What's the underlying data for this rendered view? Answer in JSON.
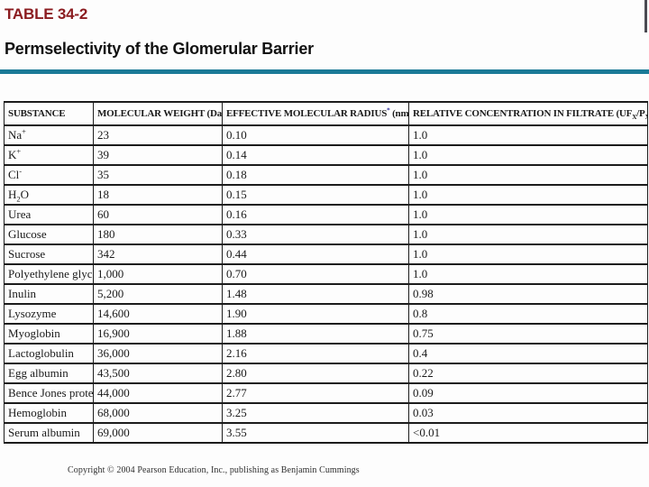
{
  "slide": {
    "table_label": "TABLE 34-2",
    "title": "Permselectivity of the Glomerular Barrier",
    "copyright": "Copyright © 2004 Pearson Education, Inc., publishing as Benjamin Cummings",
    "colors": {
      "label_red": "#8b1c20",
      "divider_teal": "#1b7a97",
      "asterisk_blue": "#2a2a9e"
    }
  },
  "table": {
    "headers": [
      {
        "name": "substance",
        "segments": [
          {
            "t": "SUBSTANCE"
          }
        ]
      },
      {
        "name": "molecular-weight",
        "segments": [
          {
            "t": "MOLECULAR WEIGHT (Da)"
          }
        ]
      },
      {
        "name": "effective-molecular-radius",
        "segments": [
          {
            "t": "EFFECTIVE MOLECULAR RADIUS"
          },
          {
            "t": "*",
            "s": "sup",
            "c": "#2a2a9e"
          },
          {
            "t": " (nm)"
          }
        ]
      },
      {
        "name": "relative-concentration",
        "segments": [
          {
            "t": "RELATIVE CONCENTRATION IN FILTRATE (UF"
          },
          {
            "t": "X",
            "s": "sub"
          },
          {
            "t": "/P"
          },
          {
            "t": "X",
            "s": "sub"
          },
          {
            "t": ")"
          }
        ]
      }
    ],
    "rows": [
      {
        "substance": [
          {
            "t": "Na"
          },
          {
            "t": "+",
            "s": "sup"
          }
        ],
        "mw": "23",
        "radius": "0.10",
        "filtrate": "1.0"
      },
      {
        "substance": [
          {
            "t": "K"
          },
          {
            "t": "+",
            "s": "sup"
          }
        ],
        "mw": "39",
        "radius": "0.14",
        "filtrate": "1.0"
      },
      {
        "substance": [
          {
            "t": "Cl"
          },
          {
            "t": "-",
            "s": "sup"
          }
        ],
        "mw": "35",
        "radius": "0.18",
        "filtrate": "1.0"
      },
      {
        "substance": [
          {
            "t": "H"
          },
          {
            "t": "2",
            "s": "sub"
          },
          {
            "t": "O"
          }
        ],
        "mw": "18",
        "radius": "0.15",
        "filtrate": "1.0"
      },
      {
        "substance": [
          {
            "t": "Urea"
          }
        ],
        "mw": "60",
        "radius": "0.16",
        "filtrate": "1.0"
      },
      {
        "substance": [
          {
            "t": "Glucose"
          }
        ],
        "mw": "180",
        "radius": "0.33",
        "filtrate": "1.0"
      },
      {
        "substance": [
          {
            "t": "Sucrose"
          }
        ],
        "mw": "342",
        "radius": "0.44",
        "filtrate": "1.0"
      },
      {
        "substance": [
          {
            "t": "Polyethylene glycol"
          }
        ],
        "mw": "1,000",
        "radius": "0.70",
        "filtrate": "1.0"
      },
      {
        "substance": [
          {
            "t": "Inulin"
          }
        ],
        "mw": "5,200",
        "radius": "1.48",
        "filtrate": "0.98"
      },
      {
        "substance": [
          {
            "t": "Lysozyme"
          }
        ],
        "mw": "14,600",
        "radius": "1.90",
        "filtrate": "0.8"
      },
      {
        "substance": [
          {
            "t": "Myoglobin"
          }
        ],
        "mw": "16,900",
        "radius": "1.88",
        "filtrate": "0.75"
      },
      {
        "substance": [
          {
            "t": "Lactoglobulin"
          }
        ],
        "mw": "36,000",
        "radius": "2.16",
        "filtrate": "0.4"
      },
      {
        "substance": [
          {
            "t": "Egg albumin"
          }
        ],
        "mw": "43,500",
        "radius": "2.80",
        "filtrate": "0.22"
      },
      {
        "substance": [
          {
            "t": "Bence Jones protein"
          }
        ],
        "mw": "44,000",
        "radius": "2.77",
        "filtrate": "0.09"
      },
      {
        "substance": [
          {
            "t": "Hemoglobin"
          }
        ],
        "mw": "68,000",
        "radius": "3.25",
        "filtrate": "0.03"
      },
      {
        "substance": [
          {
            "t": "Serum albumin"
          }
        ],
        "mw": "69,000",
        "radius": "3.55",
        "filtrate": "<0.01"
      }
    ]
  }
}
